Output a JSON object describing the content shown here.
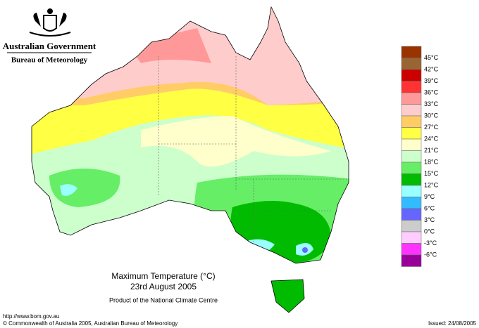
{
  "header": {
    "title": "Australian Government",
    "subtitle": "Bureau of Meteorology"
  },
  "legend": {
    "labels": [
      "45°C",
      "42°C",
      "39°C",
      "36°C",
      "33°C",
      "30°C",
      "27°C",
      "24°C",
      "21°C",
      "18°C",
      "15°C",
      "12°C",
      "9°C",
      "6°C",
      "3°C",
      "0°C",
      "-3°C",
      "-6°C"
    ],
    "colors": [
      "#993300",
      "#996633",
      "#cc0000",
      "#ff3333",
      "#ff9999",
      "#ffcccc",
      "#ffcc66",
      "#ffff44",
      "#ffffcc",
      "#ccffcc",
      "#66ee66",
      "#00bb00",
      "#99ffff",
      "#33bbff",
      "#6666ff",
      "#cccccc",
      "#ffccff",
      "#ff33ff",
      "#990099"
    ]
  },
  "caption": {
    "title": "Maximum Temperature (°C)",
    "date": "23rd August 2005",
    "product": "Product of the National Climate Centre"
  },
  "footer": {
    "url": "http://www.bom.gov.au",
    "copyright": "© Commonwealth of Australia 2005, Australian Bureau of Meteorology",
    "issued": "Issued: 24/08/2005"
  }
}
